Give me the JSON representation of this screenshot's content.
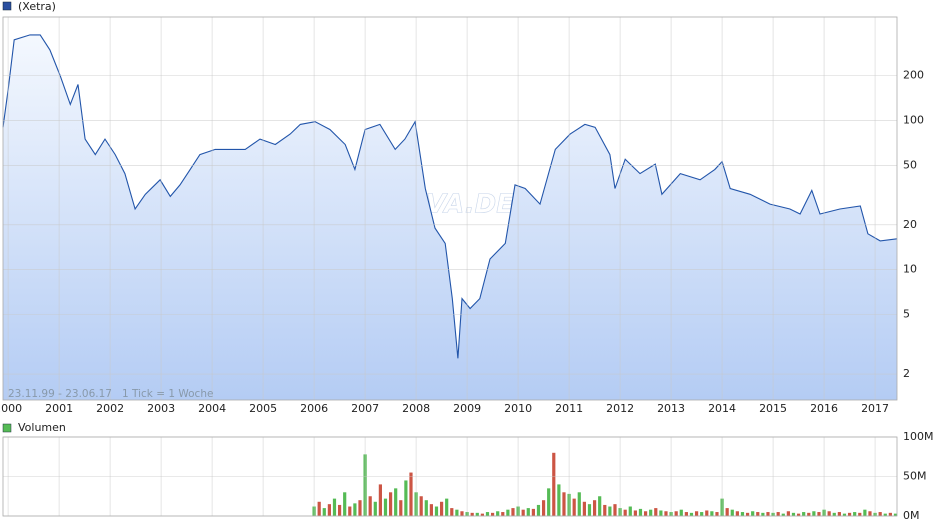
{
  "chart_data": [
    {
      "type": "line",
      "log_y": true,
      "grid": true,
      "annotation": "23.11.99 - 23.06.17   1 Tick = 1 Woche",
      "watermark": "ARIVA.DE",
      "xlim": [
        1999.9,
        2017.43
      ],
      "xticks": [
        2000,
        2001,
        2002,
        2003,
        2004,
        2005,
        2006,
        2007,
        2008,
        2009,
        2010,
        2011,
        2012,
        2013,
        2014,
        2015,
        2016,
        2017
      ],
      "ylim": [
        1.34,
        493
      ],
      "yticks": [
        2,
        5,
        10,
        20,
        50,
        100,
        200
      ],
      "series": [
        {
          "name": "(Xetra)",
          "color": "#2255aa",
          "x": [
            1999.9,
            2000.0,
            2000.12,
            2000.43,
            2000.63,
            2000.82,
            2001.02,
            2001.22,
            2001.37,
            2001.51,
            2001.71,
            2001.9,
            2002.1,
            2002.29,
            2002.49,
            2002.69,
            2002.98,
            2003.18,
            2003.37,
            2003.57,
            2003.76,
            2004.06,
            2004.35,
            2004.65,
            2004.94,
            2005.24,
            2005.53,
            2005.73,
            2006.02,
            2006.31,
            2006.61,
            2006.8,
            2007.0,
            2007.29,
            2007.59,
            2007.78,
            2007.98,
            2008.18,
            2008.37,
            2008.57,
            2008.71,
            2008.82,
            2008.9,
            2009.06,
            2009.25,
            2009.45,
            2009.75,
            2009.94,
            2010.14,
            2010.43,
            2010.73,
            2011.02,
            2011.31,
            2011.51,
            2011.8,
            2011.9,
            2012.1,
            2012.39,
            2012.69,
            2012.82,
            2013.18,
            2013.57,
            2013.86,
            2014.0,
            2014.16,
            2014.55,
            2014.94,
            2015.33,
            2015.53,
            2015.76,
            2015.92,
            2016.31,
            2016.71,
            2016.86,
            2017.1,
            2017.43
          ],
          "values": [
            90,
            160,
            347,
            374,
            374,
            297,
            200,
            128,
            174,
            75,
            59,
            75,
            59,
            44,
            25.5,
            32,
            40,
            31,
            37,
            47,
            59,
            64,
            64,
            64,
            75,
            69,
            81,
            94,
            98,
            87,
            69,
            47,
            87,
            94,
            64,
            75,
            98,
            35,
            19,
            15,
            6.4,
            2.55,
            6.4,
            5.5,
            6.4,
            11.8,
            15,
            37,
            35,
            27.5,
            64,
            81,
            94,
            90,
            59,
            35,
            55,
            44,
            51,
            32,
            44,
            40,
            47,
            53,
            35,
            32,
            27.5,
            25.5,
            23.6,
            34,
            23.6,
            25.5,
            26.7,
            17.4,
            15.6,
            16.1
          ]
        }
      ]
    },
    {
      "type": "bar",
      "grid": true,
      "xlim": [
        1999.9,
        2017.43
      ],
      "xticks": [
        2000,
        2001,
        2002,
        2003,
        2004,
        2005,
        2006,
        2007,
        2008,
        2009,
        2010,
        2011,
        2012,
        2013,
        2014,
        2015,
        2016,
        2017
      ],
      "ylim": [
        0,
        100000000
      ],
      "yticks": [
        {
          "value": 0,
          "label": "0M"
        },
        {
          "value": 50000000,
          "label": "50M"
        },
        {
          "value": 100000000,
          "label": "100M"
        }
      ],
      "series": [
        {
          "name": "Volumen",
          "color": "#55bb55",
          "bar_colors": [
            "#55bb55",
            "#cc5544"
          ],
          "x": [
            2006.0,
            2006.1,
            2006.2,
            2006.3,
            2006.4,
            2006.5,
            2006.6,
            2006.7,
            2006.8,
            2006.9,
            2007.0,
            2007.1,
            2007.2,
            2007.3,
            2007.4,
            2007.5,
            2007.6,
            2007.7,
            2007.8,
            2007.9,
            2008.0,
            2008.1,
            2008.2,
            2008.3,
            2008.4,
            2008.5,
            2008.6,
            2008.7,
            2008.8,
            2008.9,
            2009.0,
            2009.1,
            2009.2,
            2009.3,
            2009.4,
            2009.5,
            2009.6,
            2009.7,
            2009.8,
            2009.9,
            2010.0,
            2010.1,
            2010.2,
            2010.3,
            2010.4,
            2010.5,
            2010.6,
            2010.7,
            2010.8,
            2010.9,
            2011.0,
            2011.1,
            2011.2,
            2011.3,
            2011.4,
            2011.5,
            2011.6,
            2011.7,
            2011.8,
            2011.9,
            2012.0,
            2012.1,
            2012.2,
            2012.3,
            2012.4,
            2012.5,
            2012.6,
            2012.7,
            2012.8,
            2012.9,
            2013.0,
            2013.1,
            2013.2,
            2013.3,
            2013.4,
            2013.5,
            2013.6,
            2013.7,
            2013.8,
            2013.9,
            2014.0,
            2014.1,
            2014.2,
            2014.3,
            2014.4,
            2014.5,
            2014.6,
            2014.7,
            2014.8,
            2014.9,
            2015.0,
            2015.1,
            2015.2,
            2015.3,
            2015.4,
            2015.5,
            2015.6,
            2015.7,
            2015.8,
            2015.9,
            2016.0,
            2016.1,
            2016.2,
            2016.3,
            2016.4,
            2016.5,
            2016.6,
            2016.7,
            2016.8,
            2016.9,
            2017.0,
            2017.1,
            2017.2,
            2017.3,
            2017.4
          ],
          "values": [
            12000000,
            18000000,
            10000000,
            15000000,
            22000000,
            14000000,
            30000000,
            12000000,
            16000000,
            20000000,
            78000000,
            25000000,
            18000000,
            40000000,
            22000000,
            30000000,
            35000000,
            20000000,
            45000000,
            55000000,
            30000000,
            25000000,
            20000000,
            15000000,
            12000000,
            18000000,
            22000000,
            10000000,
            8000000,
            6000000,
            5000000,
            4000000,
            4000000,
            3000000,
            5000000,
            4000000,
            6000000,
            5000000,
            8000000,
            10000000,
            12000000,
            8000000,
            10000000,
            9000000,
            14000000,
            20000000,
            35000000,
            80000000,
            40000000,
            30000000,
            28000000,
            22000000,
            30000000,
            18000000,
            15000000,
            20000000,
            25000000,
            14000000,
            12000000,
            15000000,
            10000000,
            8000000,
            12000000,
            7000000,
            9000000,
            6000000,
            8000000,
            10000000,
            7000000,
            6000000,
            5000000,
            6000000,
            8000000,
            5000000,
            4000000,
            6000000,
            5000000,
            7000000,
            6000000,
            5000000,
            22000000,
            10000000,
            8000000,
            6000000,
            5000000,
            4000000,
            6000000,
            5000000,
            4000000,
            5000000,
            4000000,
            5000000,
            3000000,
            6000000,
            4000000,
            3000000,
            5000000,
            4000000,
            6000000,
            5000000,
            8000000,
            6000000,
            4000000,
            5000000,
            3000000,
            4000000,
            5000000,
            4000000,
            8000000,
            6000000,
            4000000,
            5000000,
            3000000,
            4000000,
            3000000
          ]
        }
      ]
    }
  ]
}
